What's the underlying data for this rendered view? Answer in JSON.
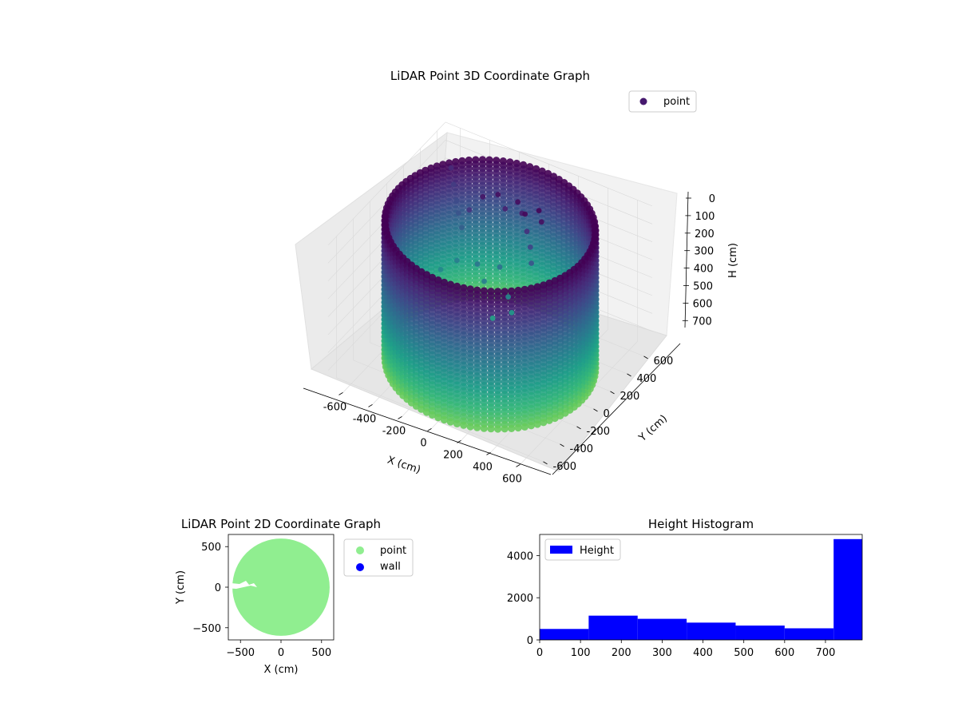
{
  "chart_data": [
    {
      "id": "lidar-3d",
      "type": "scatter",
      "title": "LiDAR Point 3D Coordinate Graph",
      "xlabel": "X (cm)",
      "ylabel": "Y (cm)",
      "zlabel": "H (cm)",
      "legend": [
        "point"
      ],
      "legend_position": "top-right",
      "colormap": "viridis",
      "xlim": [
        -700,
        700
      ],
      "ylim": [
        -700,
        700
      ],
      "zlim": [
        0,
        790
      ],
      "z_inverted": true,
      "x_ticks": [
        "-600",
        "-400",
        "-200",
        "0",
        "200",
        "400",
        "600"
      ],
      "y_ticks": [
        "-600",
        "-400",
        "-200",
        "0",
        "200",
        "400",
        "600"
      ],
      "z_ticks": [
        "0",
        "100",
        "200",
        "300",
        "400",
        "500",
        "600",
        "700"
      ],
      "cylinder": {
        "radius_cm": 620,
        "height_min_cm": 0,
        "height_max_cm": 780
      },
      "grid": true
    },
    {
      "id": "lidar-2d",
      "type": "scatter",
      "title": "LiDAR Point 2D Coordinate Graph",
      "xlabel": "X (cm)",
      "ylabel": "Y (cm)",
      "xlim": [
        -650,
        650
      ],
      "ylim": [
        -650,
        650
      ],
      "x_ticks": [
        "−500",
        "0",
        "500"
      ],
      "y_ticks": [
        "500",
        "0",
        "−500"
      ],
      "series": [
        {
          "name": "point",
          "color": "#90ee90",
          "radius_cm": 600
        },
        {
          "name": "wall",
          "color": "#0000ff"
        }
      ],
      "legend_position": "outside-right"
    },
    {
      "id": "height-histogram",
      "type": "bar",
      "title": "Height Histogram",
      "xlim": [
        0,
        790
      ],
      "ylim": [
        0,
        5000
      ],
      "bin_edges": [
        0,
        120,
        240,
        360,
        480,
        600,
        720,
        790
      ],
      "series": [
        {
          "name": "Height",
          "color": "#0000ff",
          "values": [
            520,
            1150,
            1000,
            820,
            680,
            550,
            4780
          ]
        }
      ],
      "x_ticks": [
        "0",
        "100",
        "200",
        "300",
        "400",
        "500",
        "600",
        "700"
      ],
      "y_ticks": [
        "0",
        "2000",
        "4000"
      ],
      "legend_position": "top-left"
    }
  ]
}
